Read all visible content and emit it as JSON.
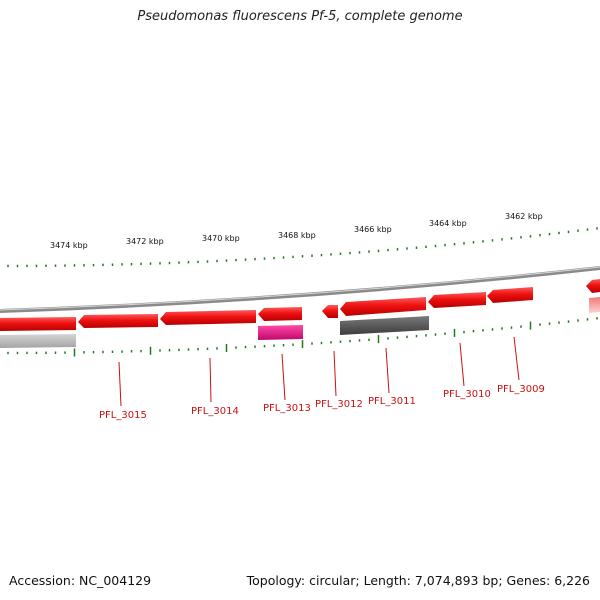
{
  "title": "Pseudomonas fluorescens Pf-5, complete genome",
  "footer": {
    "accession": "Accession: NC_004129",
    "topology": "Topology: circular; Length: 7,074,893 bp; Genes: 6,226"
  },
  "colors": {
    "backbone": "#8a8a8a",
    "tick": "#1e7a1e",
    "gene_forward": "#ee1111",
    "gene_highlight": "#e0107a",
    "gene_gray": "#5a5a5a",
    "gene_light_gray": "#b8b8b8",
    "label": "#cc1111"
  },
  "kbp_labels": [
    "3474 kbp",
    "3472 kbp",
    "3470 kbp",
    "3468 kbp",
    "3466 kbp",
    "3464 kbp",
    "3462 kbp"
  ],
  "gene_labels": [
    "PFL_3015",
    "PFL_3014",
    "PFL_3013",
    "PFL_3012",
    "PFL_3011",
    "PFL_3010",
    "PFL_3009"
  ]
}
